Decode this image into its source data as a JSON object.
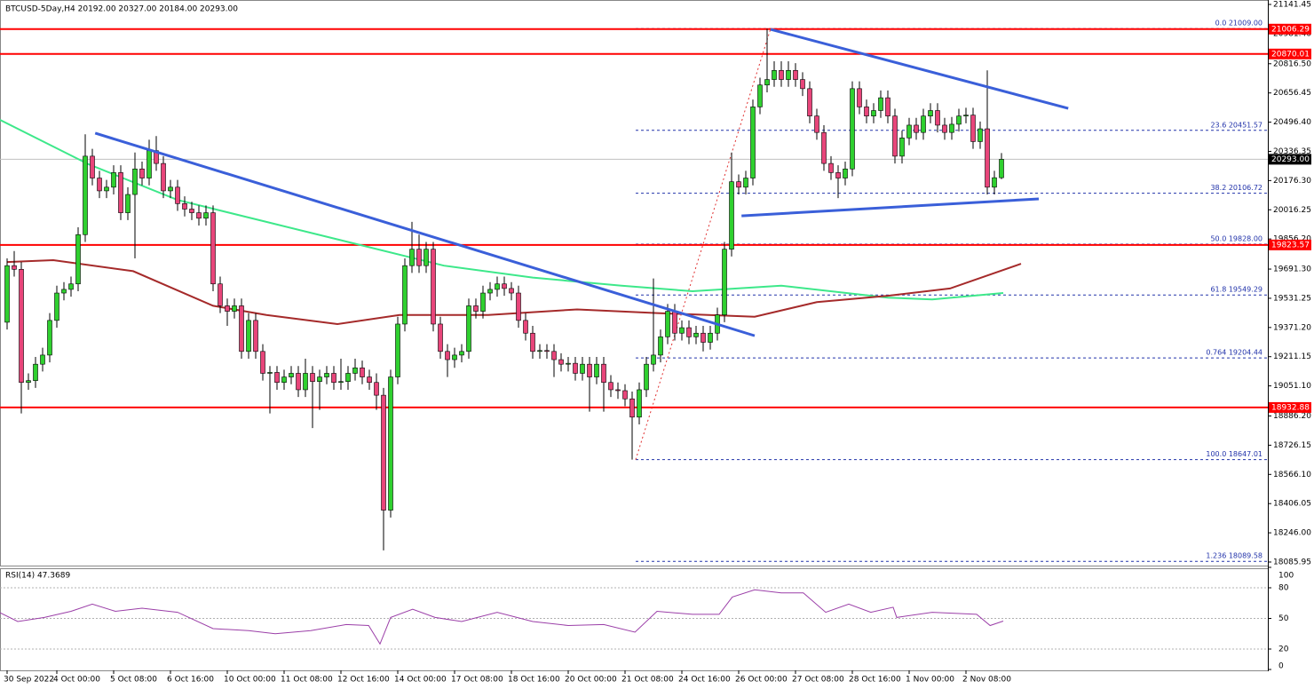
{
  "chart_data": {
    "type": "candlestick",
    "title": "BTCUSD-5Day,H4  20192.00 20327.00 20184.00 20293.00",
    "up_color": "#2fd02f",
    "down_color": "#e8457a",
    "xlim": [
      -1,
      177.5
    ],
    "ylim": [
      18066.4,
      21165.8
    ],
    "yticks": [
      {
        "value": 21141.45,
        "label": "21141.45"
      },
      {
        "value": 20981.4,
        "label": "20981.40"
      },
      {
        "value": 20816.5,
        "label": "20816.50"
      },
      {
        "value": 20656.45,
        "label": "20656.45"
      },
      {
        "value": 20496.4,
        "label": "20496.40"
      },
      {
        "value": 20336.35,
        "label": "20336.35"
      },
      {
        "value": 20176.3,
        "label": "20176.30"
      },
      {
        "value": 20016.25,
        "label": "20016.25"
      },
      {
        "value": 19856.2,
        "label": "19856.20"
      },
      {
        "value": 19691.3,
        "label": "19691.30"
      },
      {
        "value": 19531.25,
        "label": "19531.25"
      },
      {
        "value": 19371.2,
        "label": "19371.20"
      },
      {
        "value": 19211.15,
        "label": "19211.15"
      },
      {
        "value": 19051.1,
        "label": "19051.10"
      },
      {
        "value": 18886.2,
        "label": "18886.20"
      },
      {
        "value": 18726.15,
        "label": "18726.15"
      },
      {
        "value": 18566.1,
        "label": "18566.10"
      },
      {
        "value": 18406.05,
        "label": "18406.05"
      },
      {
        "value": 18246.0,
        "label": "18246.00"
      },
      {
        "value": 18085.95,
        "label": "18085.95"
      }
    ],
    "xticks": [
      {
        "value": 0,
        "label": "30 Sep 2022"
      },
      {
        "value": 7,
        "label": "4 Oct 00:00"
      },
      {
        "value": 15,
        "label": "5 Oct 08:00"
      },
      {
        "value": 23,
        "label": "6 Oct 16:00"
      },
      {
        "value": 31,
        "label": "10 Oct 00:00"
      },
      {
        "value": 39,
        "label": "11 Oct 08:00"
      },
      {
        "value": 47,
        "label": "12 Oct 16:00"
      },
      {
        "value": 55,
        "label": "14 Oct 00:00"
      },
      {
        "value": 63,
        "label": "17 Oct 08:00"
      },
      {
        "value": 71,
        "label": "18 Oct 16:00"
      },
      {
        "value": 79,
        "label": "20 Oct 00:00"
      },
      {
        "value": 87,
        "label": "21 Oct 08:00"
      },
      {
        "value": 95,
        "label": "24 Oct 16:00"
      },
      {
        "value": 103,
        "label": "26 Oct 00:00"
      },
      {
        "value": 111,
        "label": "27 Oct 08:00"
      },
      {
        "value": 119,
        "label": "28 Oct 16:00"
      },
      {
        "value": 127,
        "label": "1 Nov 00:00"
      },
      {
        "value": 135,
        "label": "2 Nov 08:00"
      }
    ],
    "open": [
      19400,
      19710,
      19690,
      19070,
      19080,
      19170,
      19220,
      19410,
      19560,
      19580,
      19610,
      19880,
      20310,
      20190,
      20120,
      20140,
      20220,
      20000,
      20100,
      20240,
      20190,
      20340,
      20270,
      20120,
      20140,
      20050,
      20020,
      20000,
      19970,
      20000,
      19610,
      19490,
      19460,
      19490,
      19240,
      19410,
      19240,
      19120,
      19125,
      19070,
      19100,
      19120,
      19030,
      19120,
      19075,
      19100,
      19120,
      19070,
      19075,
      19120,
      19150,
      19100,
      19070,
      19000,
      18370,
      19100,
      19390,
      19710,
      19800,
      19710,
      19800,
      19390,
      19240,
      19195,
      19220,
      19240,
      19490,
      19460,
      19560,
      19580,
      19610,
      19585,
      19560,
      19410,
      19340,
      19240,
      19245,
      19240,
      19195,
      19170,
      19175,
      19120,
      19170,
      19100,
      19170,
      19070,
      19030,
      19025,
      18980,
      18880,
      19030,
      19170,
      19220,
      19320,
      19460,
      19340,
      19370,
      19320,
      19340,
      19290,
      19340,
      19440,
      19800,
      20170,
      20140,
      20190,
      20580,
      20700,
      20730,
      20780,
      20730,
      20780,
      20730,
      20680,
      20530,
      20440,
      20270,
      20220,
      20190,
      20240,
      20680,
      20580,
      20530,
      20560,
      20630,
      20530,
      20310,
      20410,
      20480,
      20440,
      20530,
      20560,
      20480,
      20440,
      20485,
      20530,
      20535,
      20390,
      20460,
      20140,
      20192
    ],
    "high": [
      19750,
      19790,
      19730,
      19120,
      19210,
      19260,
      19450,
      19600,
      19620,
      19650,
      19920,
      20430,
      20350,
      20230,
      20180,
      20260,
      20260,
      20140,
      20330,
      20280,
      20400,
      20420,
      20310,
      20180,
      20180,
      20090,
      20060,
      20040,
      20040,
      20040,
      19650,
      19530,
      19530,
      19530,
      19450,
      19450,
      19280,
      19160,
      19160,
      19140,
      19160,
      19160,
      19200,
      19160,
      19140,
      19160,
      19160,
      19200,
      19160,
      19200,
      19190,
      19140,
      19120,
      19040,
      19140,
      19430,
      19750,
      19950,
      19880,
      19840,
      19840,
      19430,
      19280,
      19260,
      19280,
      19530,
      19530,
      19600,
      19620,
      19650,
      19650,
      19620,
      19600,
      19450,
      19380,
      19280,
      19280,
      19280,
      19230,
      19210,
      19210,
      19210,
      19210,
      19210,
      19210,
      19110,
      19070,
      19060,
      19020,
      19070,
      19210,
      19640,
      19360,
      19500,
      19500,
      19410,
      19410,
      19380,
      19380,
      19380,
      19480,
      19840,
      20330,
      20210,
      20230,
      20620,
      20740,
      21009,
      20830,
      20830,
      20830,
      20820,
      20770,
      20720,
      20570,
      20480,
      20310,
      20260,
      20280,
      20720,
      20720,
      20620,
      20600,
      20670,
      20670,
      20570,
      20450,
      20520,
      20520,
      20570,
      20600,
      20600,
      20520,
      20525,
      20570,
      20575,
      20575,
      20500,
      20780,
      20230,
      20327
    ],
    "low": [
      19360,
      19650,
      18900,
      19030,
      19040,
      19130,
      19180,
      19370,
      19520,
      19540,
      19570,
      19840,
      20150,
      20080,
      20080,
      20100,
      19960,
      19960,
      19750,
      20150,
      20150,
      20230,
      20080,
      20080,
      20010,
      19980,
      19960,
      19930,
      19930,
      19570,
      19450,
      19380,
      19420,
      19200,
      19200,
      19200,
      19080,
      18900,
      19030,
      19030,
      19060,
      18990,
      18990,
      18820,
      18920,
      19060,
      19030,
      19030,
      19030,
      19080,
      19060,
      19030,
      18920,
      18150,
      18330,
      19060,
      19350,
      19670,
      19670,
      19670,
      19350,
      19200,
      19100,
      19150,
      19180,
      19200,
      19420,
      19420,
      19520,
      19540,
      19545,
      19520,
      19370,
      19300,
      19200,
      19200,
      19200,
      19100,
      19130,
      19130,
      19080,
      19080,
      18910,
      19060,
      18910,
      18990,
      18980,
      18940,
      18647,
      18840,
      18990,
      19130,
      19180,
      19280,
      19300,
      19300,
      19280,
      19280,
      19240,
      19250,
      19300,
      19400,
      19760,
      20100,
      20100,
      20150,
      20540,
      20660,
      20690,
      20690,
      20690,
      20690,
      20640,
      20490,
      20400,
      20230,
      20180,
      20080,
      20150,
      20200,
      20540,
      20490,
      20490,
      20520,
      20490,
      20270,
      20270,
      20370,
      20400,
      20400,
      20490,
      20440,
      20400,
      20400,
      20445,
      20490,
      20350,
      20350,
      20100,
      20100,
      20184
    ],
    "close": [
      19710,
      19690,
      19070,
      19080,
      19170,
      19220,
      19410,
      19560,
      19580,
      19610,
      19880,
      20310,
      20190,
      20120,
      20140,
      20220,
      20000,
      20100,
      20240,
      20190,
      20340,
      20270,
      20120,
      20140,
      20050,
      20020,
      20000,
      19970,
      20000,
      19610,
      19490,
      19460,
      19490,
      19240,
      19410,
      19240,
      19120,
      19125,
      19070,
      19100,
      19120,
      19030,
      19120,
      19075,
      19100,
      19120,
      19070,
      19075,
      19120,
      19150,
      19100,
      19070,
      19000,
      18370,
      19100,
      19390,
      19710,
      19800,
      19710,
      19800,
      19390,
      19240,
      19195,
      19220,
      19240,
      19490,
      19460,
      19560,
      19580,
      19610,
      19585,
      19560,
      19410,
      19340,
      19240,
      19245,
      19240,
      19195,
      19170,
      19175,
      19120,
      19170,
      19100,
      19170,
      19070,
      19030,
      19025,
      18980,
      18880,
      19030,
      19170,
      19220,
      19320,
      19460,
      19340,
      19370,
      19320,
      19340,
      19290,
      19340,
      19440,
      19800,
      20170,
      20140,
      20190,
      20580,
      20700,
      20730,
      20780,
      20730,
      20780,
      20730,
      20680,
      20530,
      20440,
      20270,
      20220,
      20190,
      20240,
      20680,
      20580,
      20530,
      20560,
      20630,
      20530,
      20310,
      20410,
      20480,
      20440,
      20530,
      20560,
      20480,
      20440,
      20485,
      20530,
      20535,
      20390,
      20460,
      20140,
      20192,
      20293
    ],
    "moving_averages": [
      {
        "color": "#3de88a",
        "x": [
          -1,
          11.5,
          24,
          36.5,
          49,
          61.5,
          74,
          86.5,
          96.5,
          109,
          124,
          130.25,
          140.25
        ],
        "values": [
          20509,
          20265,
          20070,
          19950,
          19830,
          19710,
          19645,
          19600,
          19570,
          19600,
          19535,
          19525,
          19560
        ]
      },
      {
        "color": "#a52a2a",
        "x": [
          0,
          6.5,
          17.75,
          29,
          36.5,
          46.5,
          55.25,
          67.75,
          80.25,
          91.5,
          105.25,
          114,
          124,
          132.75,
          142.75
        ],
        "values": [
          19730,
          19740,
          19680,
          19490,
          19440,
          19390,
          19440,
          19440,
          19470,
          19450,
          19430,
          19510,
          19545,
          19585,
          19720
        ]
      }
    ],
    "trendlines": [
      {
        "color": "#3a5fd9",
        "x": [
          12.4,
          105.25
        ],
        "values": [
          20436,
          19326
        ]
      },
      {
        "color": "#3a5fd9",
        "x": [
          107.5,
          149.4
        ],
        "values": [
          21005,
          20572
        ]
      },
      {
        "color": "#3a5fd9",
        "x": [
          103.4,
          145.25
        ],
        "values": [
          19983,
          20076
        ]
      }
    ],
    "levels_color": "#ff0000",
    "levels": [
      {
        "value": 21006.29,
        "label": "21006.29"
      },
      {
        "value": 20870.01,
        "label": "20870.01"
      },
      {
        "value": 19823.57,
        "label": "19823.57"
      },
      {
        "value": 18932.88,
        "label": "18932.88"
      }
    ],
    "fib_color": "#2233aa",
    "fib_start": 88.5,
    "fib_anchor": {
      "x": [
        88.5,
        107.5
      ],
      "values": [
        18647.01,
        21009.0
      ]
    },
    "fib_levels": [
      {
        "value": 21009.0,
        "label": "0.0 21009.00"
      },
      {
        "value": 20451.57,
        "label": "23.6 20451.57"
      },
      {
        "value": 20106.72,
        "label": "38.2 20106.72"
      },
      {
        "value": 19828.0,
        "label": "50.0 19828.00"
      },
      {
        "value": 19549.29,
        "label": "61.8 19549.29"
      },
      {
        "value": 19204.44,
        "label": "0.764 19204.44"
      },
      {
        "value": 18647.01,
        "label": "100.0 18647.01"
      },
      {
        "value": 18089.58,
        "label": "1.236 18089.58"
      }
    ],
    "current_price": {
      "value": 20293.0,
      "label": "20293.00"
    },
    "rsi": {
      "title": "RSI(14) 47.3689",
      "color": "#9b3fa8",
      "ylim": [
        0,
        100
      ],
      "yticks": [
        100,
        80,
        50,
        20,
        0
      ],
      "x": [
        -1,
        1.5,
        5.25,
        9,
        12,
        15.25,
        19,
        24,
        29,
        34,
        37.75,
        42.75,
        47.75,
        50.9,
        52.5,
        54,
        57.1,
        60.25,
        64,
        69,
        74,
        79,
        84,
        88.4,
        91.5,
        96.5,
        100.25,
        102.1,
        105.25,
        109,
        112.1,
        115.25,
        118.5,
        121.6,
        124.75,
        125.25,
        130.25,
        136.5,
        138.4,
        140.25
      ],
      "values": [
        55.6,
        47,
        51,
        57,
        64,
        57,
        60,
        56,
        40,
        38,
        35,
        38,
        44,
        43,
        25,
        51,
        59,
        51,
        47,
        56,
        47,
        43,
        44,
        36.5,
        57,
        54,
        54,
        71,
        78,
        75,
        75,
        56,
        64,
        56,
        61,
        51,
        56,
        54,
        43,
        47.37
      ]
    }
  }
}
